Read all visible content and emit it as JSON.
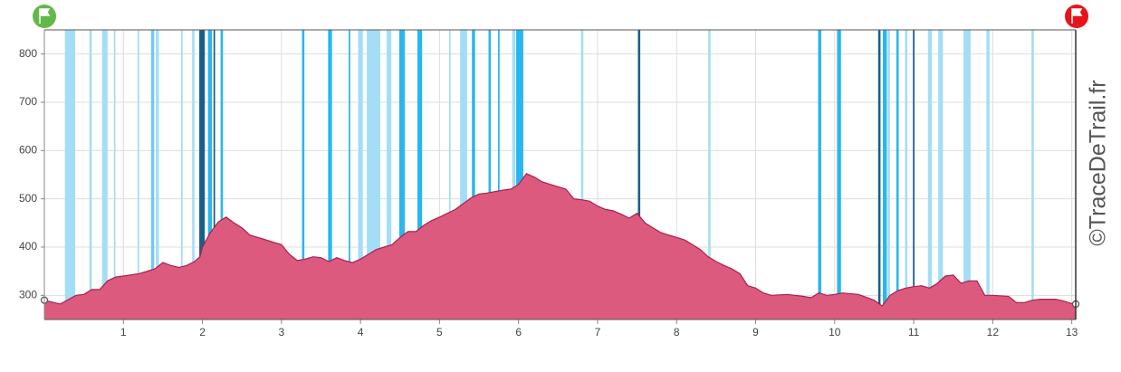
{
  "chart_data": {
    "type": "area",
    "watermark": "©TraceDeTrail.fr",
    "xlim": [
      0,
      13.05
    ],
    "ylim": [
      250,
      850
    ],
    "xticks": [
      1,
      2,
      3,
      4,
      5,
      6,
      7,
      8,
      9,
      10,
      11,
      12,
      13
    ],
    "yticks": [
      300,
      400,
      500,
      600,
      700,
      800
    ],
    "grid": true,
    "color": "#dc5a7e",
    "line_color": "#a8204d",
    "x": [
      0,
      0.2,
      0.4,
      0.5,
      0.6,
      0.7,
      0.8,
      0.9,
      1.0,
      1.2,
      1.3,
      1.4,
      1.5,
      1.6,
      1.7,
      1.8,
      1.9,
      1.97,
      2.0,
      2.1,
      2.2,
      2.3,
      2.4,
      2.5,
      2.6,
      2.7,
      2.8,
      2.9,
      3.0,
      3.1,
      3.2,
      3.3,
      3.4,
      3.5,
      3.6,
      3.7,
      3.8,
      3.9,
      4.0,
      4.1,
      4.2,
      4.3,
      4.4,
      4.5,
      4.6,
      4.7,
      4.8,
      4.9,
      5.0,
      5.1,
      5.2,
      5.3,
      5.4,
      5.5,
      5.6,
      5.7,
      5.8,
      5.9,
      6.0,
      6.1,
      6.2,
      6.3,
      6.4,
      6.5,
      6.6,
      6.7,
      6.8,
      6.9,
      7.0,
      7.1,
      7.2,
      7.3,
      7.4,
      7.5,
      7.6,
      7.7,
      7.8,
      7.9,
      8.0,
      8.1,
      8.2,
      8.3,
      8.4,
      8.5,
      8.6,
      8.7,
      8.8,
      8.9,
      9.0,
      9.1,
      9.2,
      9.4,
      9.6,
      9.7,
      9.8,
      9.9,
      10.0,
      10.1,
      10.3,
      10.5,
      10.6,
      10.7,
      10.8,
      10.9,
      11.0,
      11.1,
      11.2,
      11.3,
      11.4,
      11.5,
      11.6,
      11.7,
      11.8,
      11.9,
      12.0,
      12.2,
      12.3,
      12.4,
      12.5,
      12.6,
      12.8,
      12.9,
      13.0,
      13.05
    ],
    "values": [
      290,
      282,
      300,
      302,
      312,
      312,
      330,
      338,
      340,
      345,
      350,
      355,
      368,
      362,
      358,
      362,
      370,
      380,
      400,
      430,
      452,
      462,
      450,
      440,
      425,
      420,
      415,
      410,
      405,
      385,
      372,
      375,
      380,
      378,
      370,
      378,
      372,
      368,
      375,
      385,
      395,
      400,
      405,
      420,
      432,
      432,
      445,
      455,
      462,
      470,
      478,
      490,
      502,
      510,
      512,
      515,
      518,
      520,
      530,
      552,
      545,
      535,
      530,
      525,
      520,
      500,
      498,
      495,
      485,
      478,
      475,
      468,
      460,
      470,
      450,
      440,
      430,
      425,
      420,
      415,
      405,
      395,
      380,
      370,
      362,
      355,
      345,
      320,
      315,
      305,
      300,
      302,
      298,
      295,
      305,
      300,
      302,
      305,
      302,
      290,
      278,
      300,
      310,
      315,
      318,
      320,
      315,
      325,
      340,
      342,
      325,
      330,
      330,
      300,
      300,
      298,
      285,
      285,
      290,
      292,
      292,
      288,
      283,
      282
    ],
    "slope_bands": [
      {
        "from": 0.26,
        "to": 0.39,
        "color": "#a3def6"
      },
      {
        "from": 0.57,
        "to": 0.6,
        "color": "#a3def6"
      },
      {
        "from": 0.73,
        "to": 0.8,
        "color": "#a3def6"
      },
      {
        "from": 0.88,
        "to": 0.9,
        "color": "#a3def6"
      },
      {
        "from": 1.18,
        "to": 1.2,
        "color": "#a3def6"
      },
      {
        "from": 1.35,
        "to": 1.39,
        "color": "#6fcaf1"
      },
      {
        "from": 1.41,
        "to": 1.45,
        "color": "#a3def6"
      },
      {
        "from": 1.73,
        "to": 1.75,
        "color": "#a3def6"
      },
      {
        "from": 1.87,
        "to": 1.9,
        "color": "#a3def6"
      },
      {
        "from": 1.96,
        "to": 2.03,
        "color": "#1a5f8a"
      },
      {
        "from": 2.07,
        "to": 2.12,
        "color": "#29b6f0"
      },
      {
        "from": 2.14,
        "to": 2.16,
        "color": "#1a5f8a"
      },
      {
        "from": 2.23,
        "to": 2.26,
        "color": "#29b6f0"
      },
      {
        "from": 3.26,
        "to": 3.29,
        "color": "#29b6f0"
      },
      {
        "from": 3.59,
        "to": 3.64,
        "color": "#29b6f0"
      },
      {
        "from": 3.85,
        "to": 3.87,
        "color": "#29b6f0"
      },
      {
        "from": 3.97,
        "to": 4.03,
        "color": "#a3def6"
      },
      {
        "from": 4.08,
        "to": 4.25,
        "color": "#a3def6"
      },
      {
        "from": 4.33,
        "to": 4.39,
        "color": "#a3def6"
      },
      {
        "from": 4.49,
        "to": 4.56,
        "color": "#29b6f0"
      },
      {
        "from": 4.72,
        "to": 4.78,
        "color": "#29b6f0"
      },
      {
        "from": 5.12,
        "to": 5.14,
        "color": "#a3def6"
      },
      {
        "from": 5.26,
        "to": 5.35,
        "color": "#a3def6"
      },
      {
        "from": 5.41,
        "to": 5.45,
        "color": "#29b6f0"
      },
      {
        "from": 5.62,
        "to": 5.65,
        "color": "#29b6f0"
      },
      {
        "from": 5.74,
        "to": 5.76,
        "color": "#29b6f0"
      },
      {
        "from": 5.92,
        "to": 5.96,
        "color": "#a3def6"
      },
      {
        "from": 5.97,
        "to": 6.06,
        "color": "#29b6f0"
      },
      {
        "from": 6.79,
        "to": 6.82,
        "color": "#a3def6"
      },
      {
        "from": 7.51,
        "to": 7.54,
        "color": "#1a5f8a"
      },
      {
        "from": 8.4,
        "to": 8.43,
        "color": "#a3def6"
      },
      {
        "from": 9.79,
        "to": 9.83,
        "color": "#29b6f0"
      },
      {
        "from": 10.03,
        "to": 10.08,
        "color": "#29b6f0"
      },
      {
        "from": 10.55,
        "to": 10.58,
        "color": "#1a5f8a"
      },
      {
        "from": 10.61,
        "to": 10.66,
        "color": "#29b6f0"
      },
      {
        "from": 10.67,
        "to": 10.7,
        "color": "#a3def6"
      },
      {
        "from": 10.78,
        "to": 10.81,
        "color": "#29b6f0"
      },
      {
        "from": 10.89,
        "to": 10.92,
        "color": "#a3def6"
      },
      {
        "from": 10.99,
        "to": 11.01,
        "color": "#1a5f8a"
      },
      {
        "from": 11.18,
        "to": 11.23,
        "color": "#a3def6"
      },
      {
        "from": 11.31,
        "to": 11.37,
        "color": "#a3def6"
      },
      {
        "from": 11.63,
        "to": 11.72,
        "color": "#a3def6"
      },
      {
        "from": 11.92,
        "to": 11.96,
        "color": "#a3def6"
      },
      {
        "from": 12.49,
        "to": 12.52,
        "color": "#a3def6"
      }
    ]
  }
}
